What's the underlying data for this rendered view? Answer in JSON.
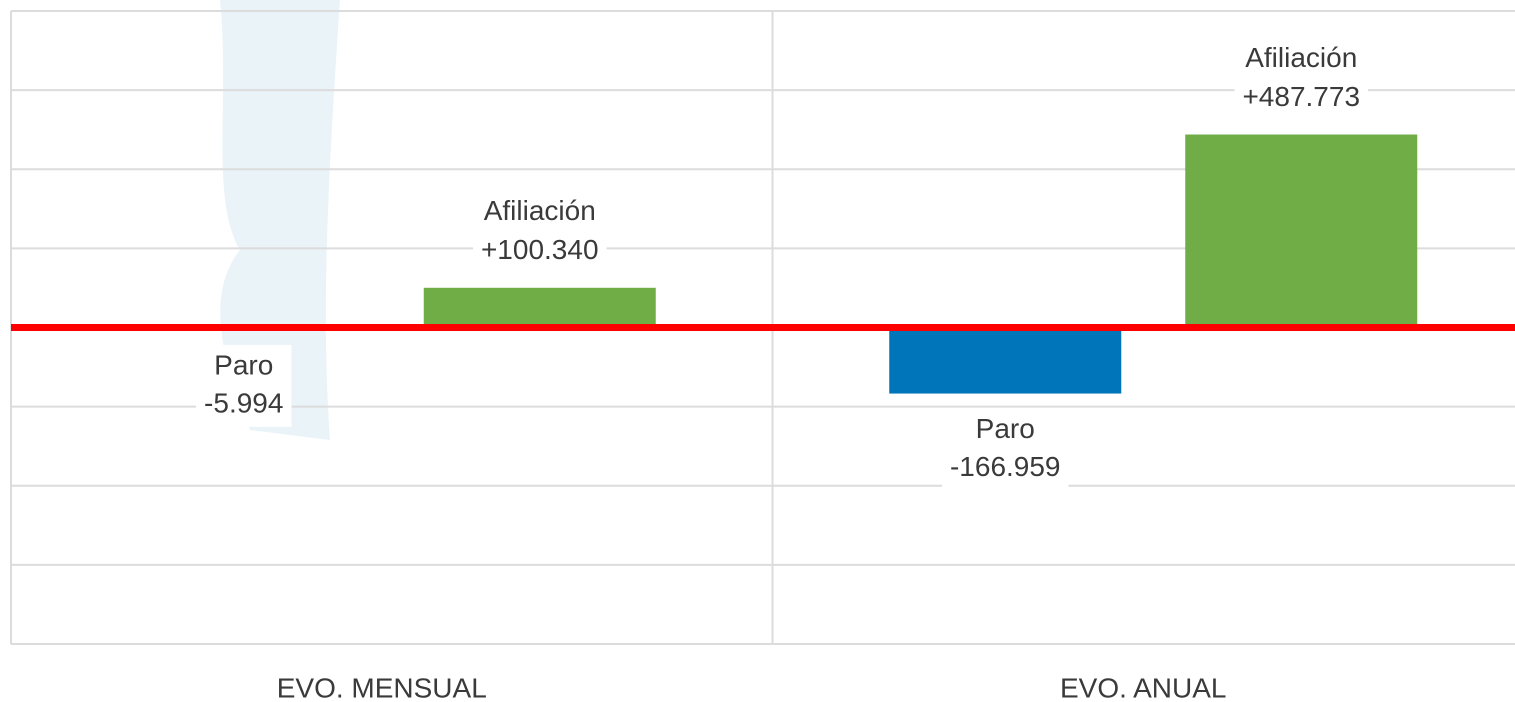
{
  "chart_data": {
    "type": "bar",
    "categories": [
      "EVO. MENSUAL",
      "EVO. ANUAL"
    ],
    "series": [
      {
        "name": "Paro",
        "color": "#0075b9",
        "values": [
          -5994,
          -166959
        ],
        "value_labels": [
          "-5.994",
          "-166.959"
        ]
      },
      {
        "name": "Afiliación",
        "color": "#70ad47",
        "values": [
          100340,
          487773
        ],
        "value_labels": [
          "+100.340",
          "+487.773"
        ]
      }
    ],
    "ylim": [
      -800000,
      800000
    ],
    "yticks": [
      -800000,
      -600000,
      -400000,
      -200000,
      0,
      200000,
      400000,
      600000,
      800000
    ],
    "grid": true,
    "zero_line_color": "#ff0000"
  }
}
